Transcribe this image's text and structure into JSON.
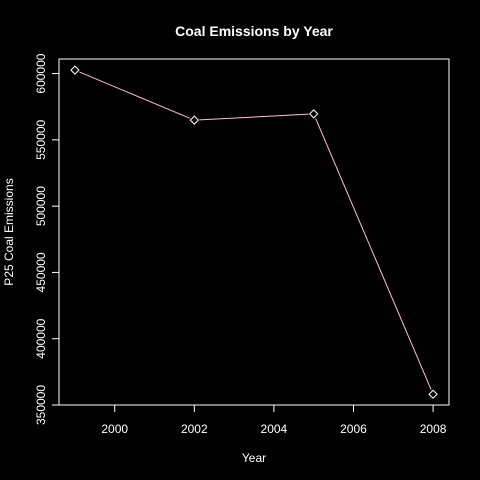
{
  "chart_data": {
    "type": "line",
    "title": "Coal Emissions by Year",
    "xlabel": "Year",
    "ylabel": "P25 Coal Emissions",
    "x": [
      1999,
      2002,
      2005,
      2008
    ],
    "series": [
      {
        "values": [
          602600,
          564900,
          569600,
          358100
        ],
        "color": "#ffc0cb",
        "marker": "diamond"
      }
    ],
    "xticks": [
      2000,
      2002,
      2004,
      2006,
      2008
    ],
    "yticks": [
      350000,
      400000,
      450000,
      500000,
      550000,
      600000
    ],
    "xlim": [
      1998.6,
      2008.4
    ],
    "ylim": [
      350000,
      611000
    ],
    "grid": false,
    "legend": "none",
    "colors": {
      "background": "#000000",
      "foreground": "#ffffff"
    }
  }
}
